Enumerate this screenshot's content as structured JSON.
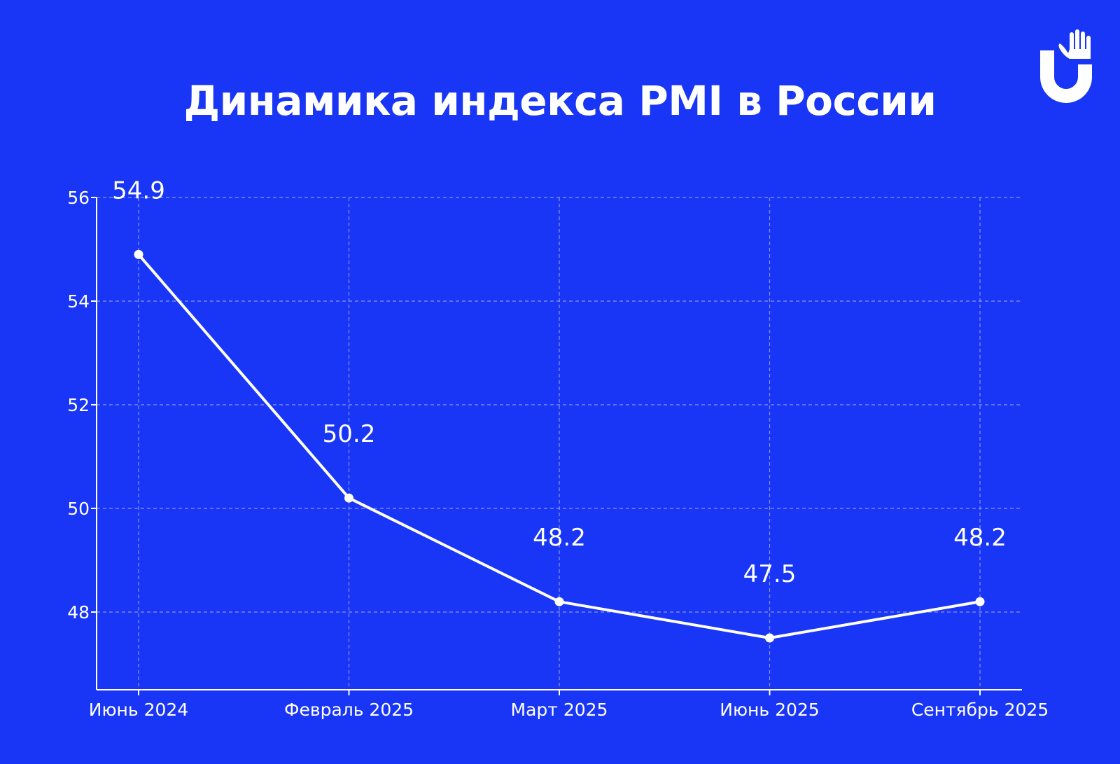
{
  "header": {
    "title": "Динамика индекса PMI в России"
  },
  "logo": {
    "icon": "hand-u-logo-icon"
  },
  "colors": {
    "background": "#1935f5",
    "line": "#ffffff",
    "grid": "#8a98f7"
  },
  "chart_data": {
    "type": "line",
    "title": "Динамика индекса PMI в России",
    "xlabel": "",
    "ylabel": "",
    "categories": [
      "Июнь 2024",
      "Февраль 2025",
      "Март 2025",
      "Июнь 2025",
      "Сентябрь 2025"
    ],
    "series": [
      {
        "values": [
          54.9,
          50.2,
          48.2,
          47.5,
          48.2
        ]
      }
    ],
    "data_labels": [
      "54.9",
      "50.2",
      "48.2",
      "47.5",
      "48.2"
    ],
    "yticks": [
      48,
      50,
      52,
      54,
      56
    ],
    "ylim": [
      46.5,
      56
    ],
    "grid": true,
    "grid_style": "dashed",
    "legend": "none"
  }
}
